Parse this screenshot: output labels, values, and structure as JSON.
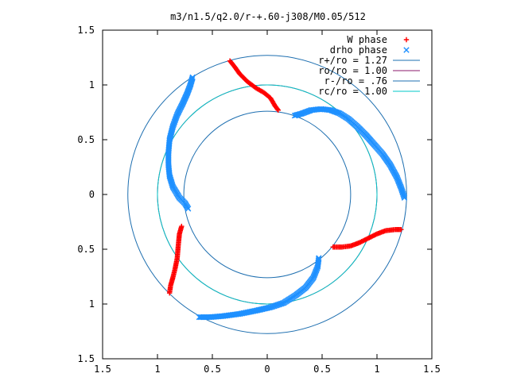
{
  "chart_data": {
    "type": "scatter",
    "title": "m3/n1.5/q2.0/r-+.60-j308/M0.05/512",
    "xlabel": "",
    "ylabel": "",
    "xlim": [
      -1.5,
      1.5
    ],
    "ylim": [
      -1.5,
      1.5
    ],
    "x_ticks": [
      "1.5",
      "1",
      "0.5",
      "0",
      "0.5",
      "1",
      "1.5"
    ],
    "y_ticks": [
      "1.5",
      "1",
      "0.5",
      "0",
      "0.5",
      "1",
      "1.5"
    ],
    "grid": false,
    "legend_position": "top-right",
    "series": [
      {
        "name": "W phase",
        "marker": "+",
        "color": "#ff0000",
        "points": [
          [
            -0.34,
            1.22
          ],
          [
            -0.3,
            1.17
          ],
          [
            -0.25,
            1.1
          ],
          [
            -0.18,
            1.03
          ],
          [
            -0.1,
            0.97
          ],
          [
            -0.03,
            0.93
          ],
          [
            0.03,
            0.88
          ],
          [
            0.07,
            0.81
          ],
          [
            0.1,
            0.77
          ],
          [
            -0.78,
            -0.29
          ],
          [
            -0.8,
            -0.36
          ],
          [
            -0.81,
            -0.46
          ],
          [
            -0.82,
            -0.58
          ],
          [
            -0.84,
            -0.68
          ],
          [
            -0.86,
            -0.76
          ],
          [
            -0.88,
            -0.83
          ],
          [
            -0.89,
            -0.9
          ],
          [
            0.6,
            -0.48
          ],
          [
            0.68,
            -0.48
          ],
          [
            0.76,
            -0.47
          ],
          [
            0.84,
            -0.44
          ],
          [
            0.92,
            -0.4
          ],
          [
            1.0,
            -0.36
          ],
          [
            1.08,
            -0.33
          ],
          [
            1.17,
            -0.32
          ],
          [
            1.22,
            -0.32
          ]
        ]
      },
      {
        "name": "drho phase",
        "marker": "x",
        "color": "#1e90ff",
        "points": [
          [
            0.25,
            0.72
          ],
          [
            0.32,
            0.74
          ],
          [
            0.4,
            0.77
          ],
          [
            0.49,
            0.78
          ],
          [
            0.58,
            0.77
          ],
          [
            0.66,
            0.74
          ],
          [
            0.74,
            0.69
          ],
          [
            0.82,
            0.62
          ],
          [
            0.9,
            0.54
          ],
          [
            0.98,
            0.45
          ],
          [
            1.05,
            0.37
          ],
          [
            1.12,
            0.27
          ],
          [
            1.18,
            0.16
          ],
          [
            1.22,
            0.06
          ],
          [
            1.25,
            -0.03
          ],
          [
            -0.68,
            1.07
          ],
          [
            -0.7,
            1.0
          ],
          [
            -0.73,
            0.92
          ],
          [
            -0.77,
            0.83
          ],
          [
            -0.82,
            0.73
          ],
          [
            -0.86,
            0.62
          ],
          [
            -0.89,
            0.5
          ],
          [
            -0.9,
            0.38
          ],
          [
            -0.9,
            0.27
          ],
          [
            -0.89,
            0.17
          ],
          [
            -0.86,
            0.07
          ],
          [
            -0.8,
            -0.03
          ],
          [
            -0.75,
            -0.08
          ],
          [
            -0.72,
            -0.13
          ],
          [
            0.47,
            -0.58
          ],
          [
            0.46,
            -0.66
          ],
          [
            0.42,
            -0.76
          ],
          [
            0.35,
            -0.85
          ],
          [
            0.26,
            -0.92
          ],
          [
            0.15,
            -0.99
          ],
          [
            0.03,
            -1.03
          ],
          [
            -0.1,
            -1.06
          ],
          [
            -0.25,
            -1.09
          ],
          [
            -0.4,
            -1.11
          ],
          [
            -0.52,
            -1.12
          ],
          [
            -0.62,
            -1.12
          ]
        ]
      },
      {
        "name": "r+/ro = 1.27",
        "type": "circle",
        "radius": 1.27,
        "color": "#1e6fb0"
      },
      {
        "name": "ro/ro = 1.00",
        "type": "circle",
        "radius": 1.0,
        "color": "#8b1a6b"
      },
      {
        "name": "r-/ro = .76",
        "type": "circle",
        "radius": 0.76,
        "color": "#1e6fb0"
      },
      {
        "name": "rc/ro = 1.00",
        "type": "circle",
        "radius": 1.0,
        "color": "#00c8c8"
      }
    ]
  }
}
